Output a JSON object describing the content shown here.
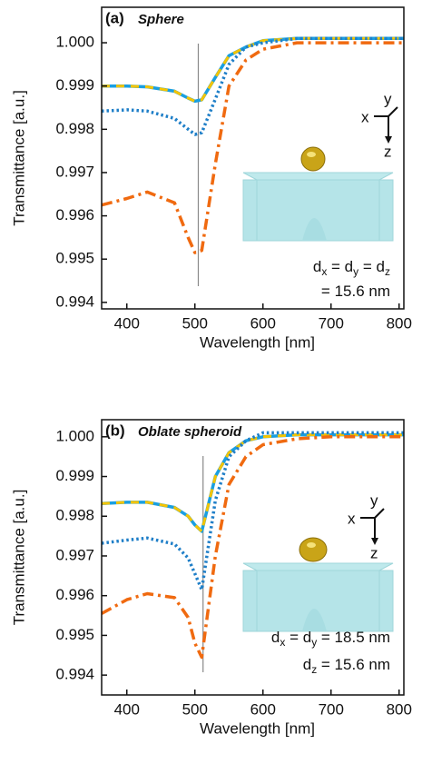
{
  "chart_data": [
    {
      "type": "line",
      "panel_label": "(a)",
      "title": "Sphere",
      "x_label": "Wavelength [nm]",
      "y_label": "Transmittance [a.u.]",
      "xlim": [
        363,
        807
      ],
      "xticks": [
        400,
        500,
        600,
        700,
        800
      ],
      "ylim": [
        0.99385,
        1.00082
      ],
      "yticks": [
        {
          "value": 0.994,
          "label": "0.994"
        },
        {
          "value": 0.995,
          "label": "0.995"
        },
        {
          "value": 0.996,
          "label": "0.996"
        },
        {
          "value": 0.997,
          "label": "0.997"
        },
        {
          "value": 0.998,
          "label": "0.998"
        },
        {
          "value": 0.999,
          "label": "0.999"
        },
        {
          "value": 1.0,
          "label": "1.000"
        }
      ],
      "vline": 505,
      "x": [
        363,
        400,
        430,
        470,
        490,
        500,
        510,
        530,
        550,
        575,
        600,
        650,
        700,
        800,
        807
      ],
      "series": [
        {
          "color": "#1a9fe0",
          "dash_color": "#f5c400",
          "style": "dashed",
          "values": [
            0.999,
            0.999,
            0.99898,
            0.99888,
            0.99872,
            0.99865,
            0.99868,
            0.9992,
            0.9997,
            0.9999,
            1.00005,
            1.0001,
            1.0001,
            1.0001,
            1.0001
          ]
        },
        {
          "color": "#1f7fc8",
          "style": "dotted",
          "values": [
            0.99842,
            0.99845,
            0.99842,
            0.99825,
            0.998,
            0.99788,
            0.99792,
            0.9987,
            0.9995,
            0.9999,
            1.0,
            1.0001,
            1.0001,
            1.0001,
            1.0001
          ]
        },
        {
          "color": "#f06a10",
          "style": "dashdot",
          "values": [
            0.99625,
            0.9964,
            0.99655,
            0.9963,
            0.9955,
            0.99515,
            0.9952,
            0.9972,
            0.999,
            0.9996,
            0.99985,
            1.0,
            1.0,
            1.0,
            1.0
          ]
        }
      ],
      "inset_axes_labels": [
        "y",
        "x",
        "z"
      ],
      "annotation_lines": [
        [
          "d",
          "x",
          " = d",
          "y",
          " = d",
          "z"
        ],
        [
          "= 15.6 nm"
        ]
      ]
    },
    {
      "type": "line",
      "panel_label": "(b)",
      "title": "Oblate spheroid",
      "x_label": "Wavelength [nm]",
      "y_label": "Transmittance [a.u.]",
      "xlim": [
        363,
        807
      ],
      "xticks": [
        400,
        500,
        600,
        700,
        800
      ],
      "ylim": [
        0.9935,
        1.00043
      ],
      "yticks": [
        {
          "value": 0.994,
          "label": "0.994"
        },
        {
          "value": 0.995,
          "label": "0.995"
        },
        {
          "value": 0.996,
          "label": "0.996"
        },
        {
          "value": 0.997,
          "label": "0.997"
        },
        {
          "value": 0.998,
          "label": "0.998"
        },
        {
          "value": 0.999,
          "label": "0.999"
        },
        {
          "value": 1.0,
          "label": "1.000"
        }
      ],
      "vline": 512,
      "x": [
        363,
        400,
        430,
        470,
        490,
        500,
        510,
        530,
        550,
        575,
        600,
        650,
        700,
        800,
        807
      ],
      "series": [
        {
          "color": "#1a9fe0",
          "dash_color": "#f5c400",
          "style": "dashed",
          "values": [
            0.99832,
            0.99835,
            0.99835,
            0.99822,
            0.998,
            0.99778,
            0.99762,
            0.999,
            0.9996,
            0.9999,
            1.0,
            1.00005,
            1.00005,
            1.00005,
            1.00005
          ]
        },
        {
          "color": "#1f7fc8",
          "style": "dotted",
          "values": [
            0.99732,
            0.9974,
            0.99745,
            0.9973,
            0.99695,
            0.99655,
            0.99615,
            0.9984,
            0.9995,
            0.9999,
            1.0001,
            1.0001,
            1.0001,
            1.0001,
            1.0001
          ]
        },
        {
          "color": "#f06a10",
          "style": "dashdot",
          "values": [
            0.99555,
            0.9959,
            0.99605,
            0.99595,
            0.99545,
            0.9948,
            0.99445,
            0.997,
            0.9988,
            0.9995,
            0.9998,
            0.99995,
            1.0,
            1.0,
            1.0
          ]
        }
      ],
      "inset_axes_labels": [
        "y",
        "x",
        "z"
      ],
      "annotation_lines": [
        [
          "d",
          "x",
          " = d",
          "y",
          " = 18.5 nm"
        ],
        [
          "d",
          "z",
          " = 15.6 nm"
        ]
      ]
    }
  ]
}
